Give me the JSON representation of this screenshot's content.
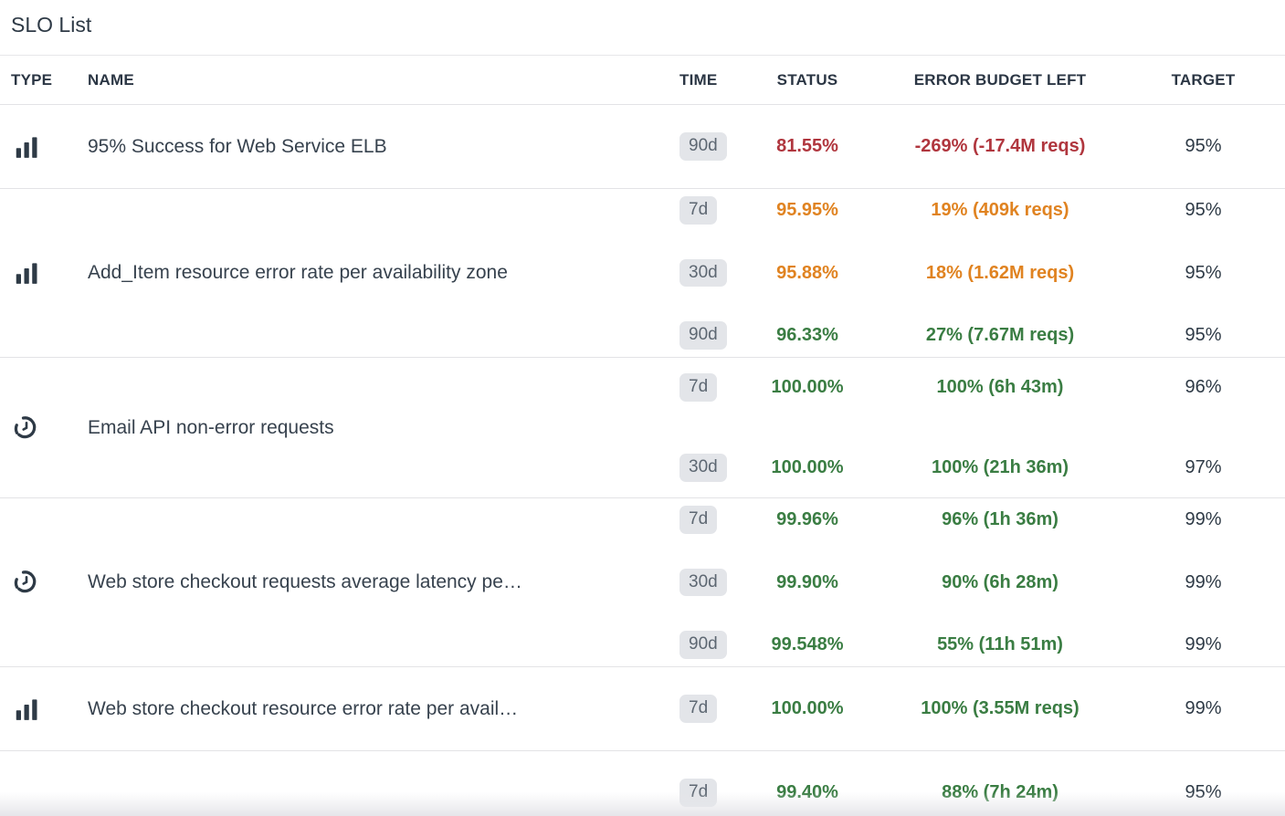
{
  "page": {
    "title": "SLO List"
  },
  "colors": {
    "green": "#3a7d43",
    "orange": "#e08321",
    "red": "#b0363e",
    "pill_bg": "#e3e5e9",
    "text_dark": "#2e3a46"
  },
  "table": {
    "columns": [
      {
        "key": "type",
        "label": "TYPE"
      },
      {
        "key": "name",
        "label": "NAME"
      },
      {
        "key": "time",
        "label": "TIME"
      },
      {
        "key": "status",
        "label": "STATUS"
      },
      {
        "key": "budget",
        "label": "ERROR BUDGET LEFT"
      },
      {
        "key": "target",
        "label": "TARGET"
      }
    ],
    "rows": [
      {
        "type_icon": "bar-chart-icon",
        "name": "95% Success for Web Service ELB",
        "windows": [
          {
            "time": "90d",
            "status": "81.55%",
            "status_color": "red",
            "budget": "-269% (-17.4M reqs)",
            "budget_color": "red",
            "target": "95%"
          }
        ]
      },
      {
        "type_icon": "bar-chart-icon",
        "name": "Add_Item resource error rate per availability zone",
        "windows": [
          {
            "time": "7d",
            "status": "95.95%",
            "status_color": "orange",
            "budget": "19% (409k reqs)",
            "budget_color": "orange",
            "target": "95%"
          },
          {
            "time": "30d",
            "status": "95.88%",
            "status_color": "orange",
            "budget": "18% (1.62M reqs)",
            "budget_color": "orange",
            "target": "95%"
          },
          {
            "time": "90d",
            "status": "96.33%",
            "status_color": "green",
            "budget": "27% (7.67M reqs)",
            "budget_color": "green",
            "target": "95%"
          }
        ]
      },
      {
        "type_icon": "stopwatch-icon",
        "name": "Email API non-error requests",
        "windows": [
          {
            "time": "7d",
            "status": "100.00%",
            "status_color": "green",
            "budget": "100% (6h 43m)",
            "budget_color": "green",
            "target": "96%"
          },
          {
            "time": "30d",
            "status": "100.00%",
            "status_color": "green",
            "budget": "100% (21h 36m)",
            "budget_color": "green",
            "target": "97%"
          }
        ]
      },
      {
        "type_icon": "stopwatch-icon",
        "name": "Web store checkout requests average latency pe…",
        "windows": [
          {
            "time": "7d",
            "status": "99.96%",
            "status_color": "green",
            "budget": "96% (1h 36m)",
            "budget_color": "green",
            "target": "99%"
          },
          {
            "time": "30d",
            "status": "99.90%",
            "status_color": "green",
            "budget": "90% (6h 28m)",
            "budget_color": "green",
            "target": "99%"
          },
          {
            "time": "90d",
            "status": "99.548%",
            "status_color": "green",
            "budget": "55% (11h 51m)",
            "budget_color": "green",
            "target": "99%"
          }
        ]
      },
      {
        "type_icon": "bar-chart-icon",
        "name": "Web store checkout resource error rate per avail…",
        "windows": [
          {
            "time": "7d",
            "status": "100.00%",
            "status_color": "green",
            "budget": "100% (3.55M reqs)",
            "budget_color": "green",
            "target": "99%"
          }
        ]
      },
      {
        "type_icon": "",
        "name": "",
        "windows": [
          {
            "time": "7d",
            "status": "99.40%",
            "status_color": "green",
            "budget": "88% (7h 24m)",
            "budget_color": "green",
            "target": "95%"
          }
        ]
      }
    ]
  }
}
